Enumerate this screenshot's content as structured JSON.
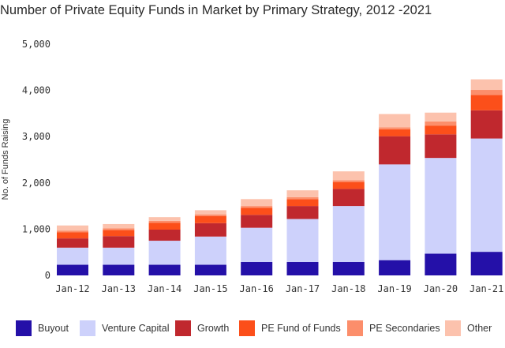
{
  "chart_data": {
    "type": "bar",
    "stacked": true,
    "title": "Number of Private Equity Funds in Market by Primary Strategy, 2012 -2021",
    "xlabel": "",
    "ylabel": "No. of Funds Raising",
    "ylim": [
      0,
      5000
    ],
    "yticks": [
      0,
      1000,
      2000,
      3000,
      4000,
      5000
    ],
    "ytick_labels": [
      "0",
      "1,000",
      "2,000",
      "3,000",
      "4,000",
      "5,000"
    ],
    "grid": false,
    "legend_position": "bottom",
    "categories": [
      "Jan-12",
      "Jan-13",
      "Jan-14",
      "Jan-15",
      "Jan-16",
      "Jan-17",
      "Jan-18",
      "Jan-19",
      "Jan-20",
      "Jan-21"
    ],
    "series": [
      {
        "name": "Buyout",
        "color": "#2410a8",
        "values": [
          230,
          230,
          230,
          230,
          290,
          290,
          290,
          330,
          470,
          510
        ]
      },
      {
        "name": "Venture Capital",
        "color": "#cdd1fb",
        "values": [
          370,
          370,
          520,
          610,
          740,
          930,
          1210,
          2070,
          2070,
          2450
        ]
      },
      {
        "name": "Growth",
        "color": "#c0282e",
        "values": [
          200,
          250,
          240,
          290,
          280,
          280,
          370,
          610,
          510,
          610
        ]
      },
      {
        "name": "PE Fund of Funds",
        "color": "#fc4f1a",
        "values": [
          130,
          130,
          150,
          150,
          150,
          150,
          150,
          150,
          190,
          330
        ]
      },
      {
        "name": "PE Secondaries",
        "color": "#fc8e6b",
        "values": [
          40,
          40,
          40,
          40,
          40,
          40,
          40,
          40,
          90,
          110
        ]
      },
      {
        "name": "Other",
        "color": "#fcc2ad",
        "values": [
          110,
          90,
          80,
          90,
          150,
          150,
          190,
          290,
          190,
          230
        ]
      }
    ]
  }
}
